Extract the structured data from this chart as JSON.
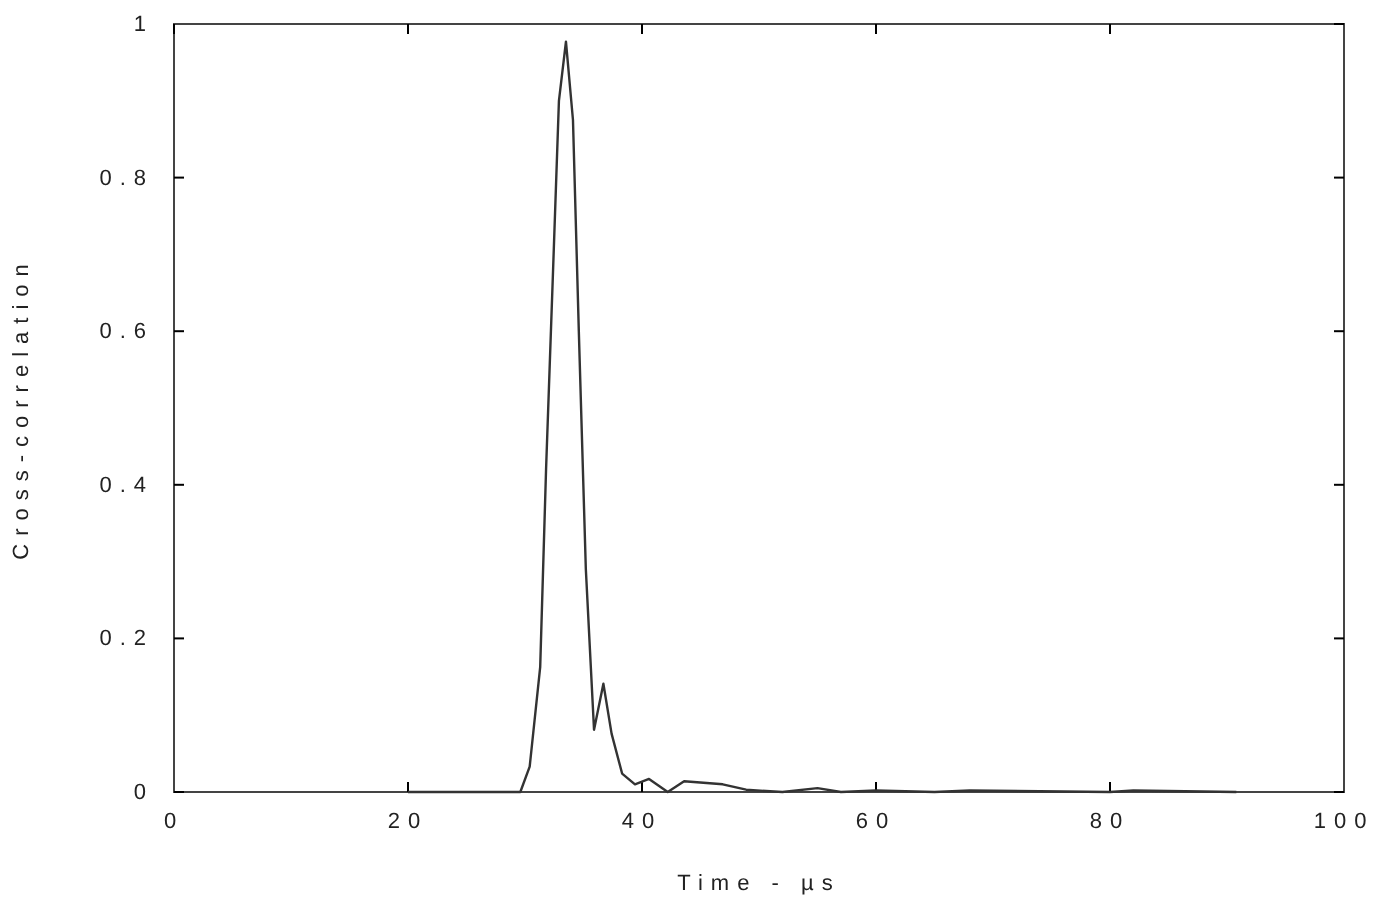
{
  "chart_data": {
    "type": "line",
    "xlabel": "Time - µs",
    "ylabel": "Cross-correlation",
    "xlim": [
      0,
      100
    ],
    "ylim": [
      0,
      1
    ],
    "xticks": [
      0,
      20,
      40,
      60,
      80,
      100
    ],
    "yticks": [
      0,
      0.2,
      0.4,
      0.6,
      0.8,
      1
    ],
    "grid": false,
    "series": [
      {
        "color": "#333333",
        "x": [
          20,
          29.6,
          30.4,
          31.3,
          31.8,
          32.4,
          32.9,
          33.5,
          34.1,
          34.6,
          35.2,
          35.9,
          36.7,
          37.4,
          38.3,
          39.4,
          40.6,
          42.2,
          43.6,
          46.9,
          48.9,
          52,
          55,
          57,
          60,
          65,
          68,
          80,
          82,
          90.8
        ],
        "values": [
          0,
          0,
          0.033,
          0.163,
          0.42,
          0.68,
          0.9,
          0.977,
          0.875,
          0.6,
          0.29,
          0.081,
          0.141,
          0.076,
          0.024,
          0.01,
          0.017,
          0,
          0.014,
          0.01,
          0.003,
          0,
          0.005,
          0,
          0.002,
          0,
          0.002,
          0,
          0.002,
          0
        ]
      }
    ]
  }
}
